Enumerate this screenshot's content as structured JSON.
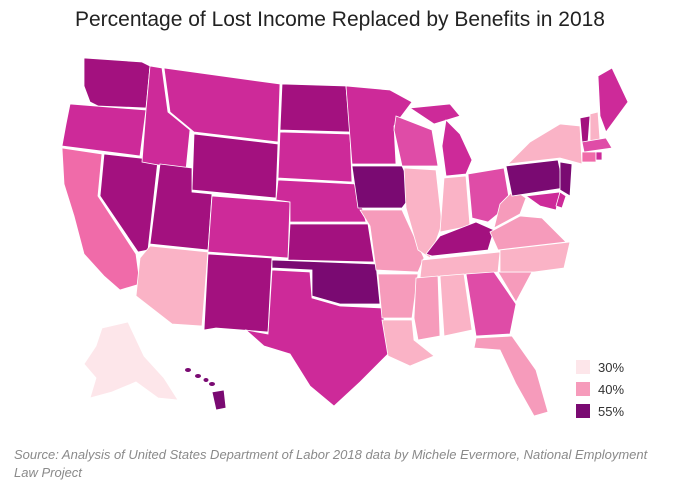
{
  "title": "Percentage of Lost Income Replaced by Benefits in 2018",
  "legend": [
    {
      "label": "30%",
      "color": "#fde6ea"
    },
    {
      "label": "40%",
      "color": "#f69bbb"
    },
    {
      "label": "55%",
      "color": "#7a0a72"
    }
  ],
  "source": "Source: Analysis of United States Department of Labor 2018 data by Michele Evermore, National Employment Law Project",
  "colors": {
    "darkest": "#7a0a72",
    "dark": "#a3117f",
    "medium_dark": "#cd2a99",
    "medium": "#df4ca7",
    "pink": "#f06ba9",
    "light_pink": "#f69bbb",
    "lighter_pink": "#fab3c6",
    "palest": "#fde6ea"
  }
}
